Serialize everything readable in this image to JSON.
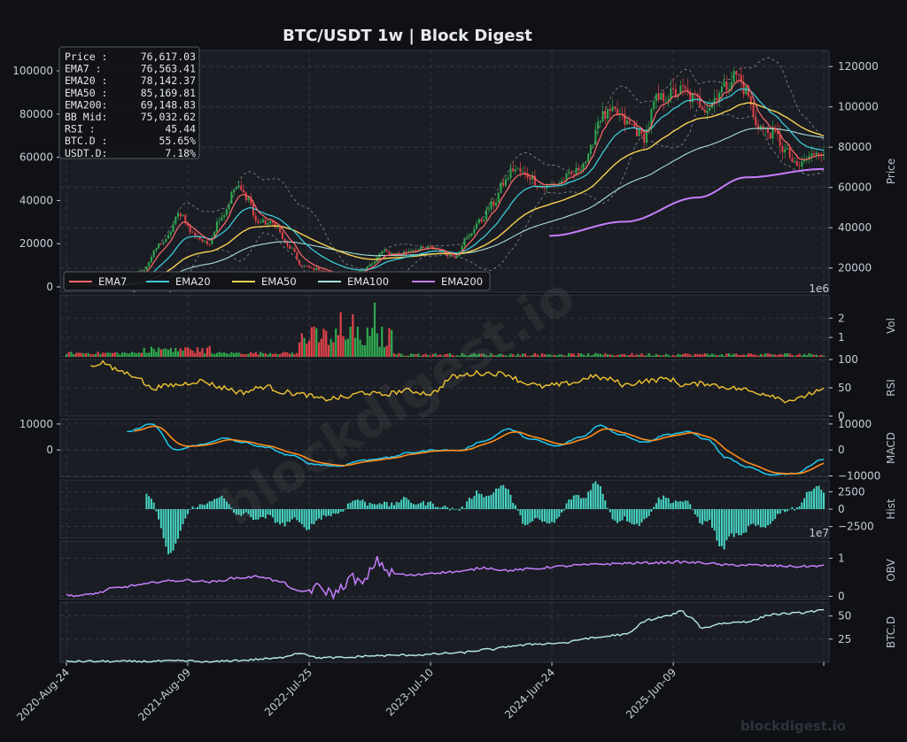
{
  "title": "BTC/USDT  1w  |  Block Digest",
  "watermark": "blockdigest.io",
  "footer_brand": "blockdigest.io",
  "colors": {
    "bg": "#0f1116",
    "panel": "#1a1d23",
    "up": "#2fa84f",
    "down": "#e0434a",
    "ema7": "#ff6b6b",
    "ema20": "#3fc9d9",
    "ema50": "#f7d154",
    "ema100": "#a8e0dc",
    "ema200": "#c77dff",
    "rsi": "#f0c431",
    "macd": "#1ec8f0",
    "signal": "#ff8c1a",
    "hist": "#48d6c6",
    "obv": "#c77dff",
    "btcd": "#b7ecec"
  },
  "info_box": [
    {
      "label": "Price :",
      "value": "76,617.03"
    },
    {
      "label": "EMA7  :",
      "value": "76,563.41"
    },
    {
      "label": "EMA20 :",
      "value": "78,142.37"
    },
    {
      "label": "EMA50 :",
      "value": "85,169.81"
    },
    {
      "label": "EMA200:",
      "value": "69,148.83"
    },
    {
      "label": "BB Mid:",
      "value": "75,032.62"
    },
    {
      "label": "RSI   :",
      "value": "45.44"
    },
    {
      "label": "BTC.D :",
      "value": "55.65%"
    },
    {
      "label": "USDT.D:",
      "value": "7.18%"
    }
  ],
  "legend": [
    "EMA7",
    "EMA20",
    "EMA50",
    "EMA100",
    "EMA200"
  ],
  "x_tick_labels": [
    "2020-Aug-24",
    "2021-Aug-09",
    "2022-Jul-25",
    "2023-Jul-10",
    "2024-Jun-24",
    "2025-Jun-09"
  ],
  "chart_data": {
    "type": "line",
    "x_range": [
      "2020-Aug-24",
      "2026-Jan"
    ],
    "panels": [
      {
        "id": "price",
        "ylabel": "Price",
        "left_ticks": [
          0,
          20000,
          40000,
          60000,
          80000,
          100000
        ],
        "right_ticks": [
          20000,
          40000,
          60000,
          80000,
          100000,
          120000
        ],
        "right_labels": [
          "20000",
          "40000",
          "60000",
          "80000",
          "100000",
          "120000"
        ],
        "left_labels": [
          "0",
          "20000",
          "40000",
          "60000",
          "80000",
          "100000"
        ],
        "right_ylim": [
          8000,
          128000
        ],
        "offset_label": "1e6",
        "series": [
          "Candles",
          "EMA7",
          "EMA20",
          "EMA50",
          "EMA100",
          "EMA200",
          "BB Upper",
          "BB Lower"
        ]
      },
      {
        "id": "vol",
        "ylabel": "Vol",
        "ticks": [
          "2",
          "1"
        ],
        "ylim": [
          0,
          3.2
        ]
      },
      {
        "id": "rsi",
        "ylabel": "RSI",
        "ticks": [
          "100",
          "50",
          "0"
        ],
        "ylim": [
          0,
          100
        ]
      },
      {
        "id": "macd",
        "ylabel": "MACD",
        "left_ticks": [
          "10000",
          "0"
        ],
        "right_ticks": [
          "10000",
          "0",
          "−10000"
        ],
        "ylim": [
          -10500,
          12000
        ]
      },
      {
        "id": "hist",
        "ylabel": "Hist",
        "ticks": [
          "2500",
          "0",
          "−2500"
        ],
        "ylim": [
          -4200,
          4200
        ],
        "offset_label": "1e7"
      },
      {
        "id": "obv",
        "ylabel": "OBV",
        "ticks": [
          "1",
          "0"
        ],
        "ylim": [
          -0.08,
          1.45
        ]
      },
      {
        "id": "btcd",
        "ylabel": "BTC.D",
        "ticks": [
          "50",
          "25"
        ],
        "ylim": [
          0,
          65
        ]
      }
    ],
    "keypoints": {
      "price": [
        [
          0,
          11500
        ],
        [
          20,
          11000
        ],
        [
          30,
          18000
        ],
        [
          40,
          33000
        ],
        [
          47,
          47000
        ],
        [
          52,
          37000
        ],
        [
          58,
          32000
        ],
        [
          64,
          46000
        ],
        [
          70,
          60000
        ],
        [
          75,
          55000
        ],
        [
          78,
          43000
        ],
        [
          85,
          42000
        ],
        [
          92,
          30000
        ],
        [
          97,
          21000
        ],
        [
          103,
          19500
        ],
        [
          110,
          17000
        ],
        [
          118,
          16500
        ],
        [
          126,
          22000
        ],
        [
          130,
          28000
        ],
        [
          136,
          27000
        ],
        [
          143,
          29000
        ],
        [
          150,
          30000
        ],
        [
          160,
          26000
        ],
        [
          165,
          35000
        ],
        [
          170,
          43000
        ],
        [
          176,
          52000
        ],
        [
          180,
          62000
        ],
        [
          184,
          69000
        ],
        [
          190,
          66000
        ],
        [
          196,
          60000
        ],
        [
          202,
          62000
        ],
        [
          208,
          66000
        ],
        [
          214,
          73000
        ],
        [
          220,
          95000
        ],
        [
          226,
          97000
        ],
        [
          232,
          91000
        ],
        [
          238,
          85000
        ],
        [
          243,
          103000
        ],
        [
          248,
          106000
        ],
        [
          254,
          108000
        ],
        [
          258,
          104000
        ],
        [
          264,
          100000
        ],
        [
          270,
          109000
        ],
        [
          276,
          116000
        ],
        [
          280,
          108000
        ],
        [
          284,
          92000
        ],
        [
          288,
          88000
        ],
        [
          292,
          86000
        ],
        [
          296,
          78000
        ],
        [
          301,
          70000
        ],
        [
          305,
          74000
        ],
        [
          310,
          79000
        ],
        [
          312,
          76617
        ]
      ],
      "ema200_start_week": 199,
      "ema200_end": 69148.83,
      "rsi": [
        [
          10,
          88
        ],
        [
          15,
          95
        ],
        [
          20,
          82
        ],
        [
          28,
          72
        ],
        [
          35,
          50
        ],
        [
          45,
          55
        ],
        [
          55,
          62
        ],
        [
          65,
          50
        ],
        [
          72,
          42
        ],
        [
          82,
          52
        ],
        [
          90,
          42
        ],
        [
          98,
          38
        ],
        [
          105,
          30
        ],
        [
          115,
          33
        ],
        [
          122,
          42
        ],
        [
          130,
          38
        ],
        [
          140,
          45
        ],
        [
          150,
          40
        ],
        [
          160,
          70
        ],
        [
          170,
          76
        ],
        [
          180,
          75
        ],
        [
          190,
          58
        ],
        [
          196,
          52
        ],
        [
          202,
          55
        ],
        [
          210,
          60
        ],
        [
          216,
          70
        ],
        [
          224,
          65
        ],
        [
          230,
          55
        ],
        [
          238,
          62
        ],
        [
          248,
          66
        ],
        [
          254,
          55
        ],
        [
          264,
          58
        ],
        [
          270,
          52
        ],
        [
          278,
          48
        ],
        [
          284,
          42
        ],
        [
          290,
          38
        ],
        [
          296,
          28
        ],
        [
          302,
          30
        ],
        [
          306,
          40
        ],
        [
          312,
          45.44
        ]
      ],
      "macd": [
        [
          25,
          7000
        ],
        [
          35,
          10000
        ],
        [
          45,
          0
        ],
        [
          55,
          2000
        ],
        [
          65,
          4500
        ],
        [
          72,
          3000
        ],
        [
          82,
          1000
        ],
        [
          92,
          -2000
        ],
        [
          102,
          -5500
        ],
        [
          112,
          -6200
        ],
        [
          122,
          -4000
        ],
        [
          132,
          -3000
        ],
        [
          142,
          -1000
        ],
        [
          152,
          0
        ],
        [
          162,
          -200
        ],
        [
          172,
          3500
        ],
        [
          182,
          8000
        ],
        [
          192,
          4000
        ],
        [
          202,
          1500
        ],
        [
          212,
          5000
        ],
        [
          220,
          9500
        ],
        [
          228,
          6000
        ],
        [
          238,
          3000
        ],
        [
          248,
          6000
        ],
        [
          256,
          7000
        ],
        [
          264,
          4000
        ],
        [
          272,
          -3000
        ],
        [
          280,
          -6500
        ],
        [
          290,
          -9500
        ],
        [
          300,
          -9000
        ],
        [
          312,
          -3500
        ]
      ],
      "obv": [
        [
          0,
          0.03
        ],
        [
          6,
          0.02
        ],
        [
          12,
          0.08
        ],
        [
          20,
          0.22
        ],
        [
          30,
          0.3
        ],
        [
          40,
          0.4
        ],
        [
          50,
          0.42
        ],
        [
          60,
          0.38
        ],
        [
          70,
          0.48
        ],
        [
          80,
          0.52
        ],
        [
          88,
          0.38
        ],
        [
          96,
          0.12
        ],
        [
          104,
          0.22
        ],
        [
          110,
          0.08
        ],
        [
          118,
          0.48
        ],
        [
          122,
          0.32
        ],
        [
          128,
          0.92
        ],
        [
          134,
          0.6
        ],
        [
          142,
          0.55
        ],
        [
          152,
          0.62
        ],
        [
          162,
          0.65
        ],
        [
          172,
          0.75
        ],
        [
          182,
          0.68
        ],
        [
          192,
          0.72
        ],
        [
          202,
          0.78
        ],
        [
          212,
          0.82
        ],
        [
          222,
          0.85
        ],
        [
          232,
          0.87
        ],
        [
          242,
          0.88
        ],
        [
          252,
          0.9
        ],
        [
          262,
          0.88
        ],
        [
          272,
          0.82
        ],
        [
          282,
          0.82
        ],
        [
          292,
          0.8
        ],
        [
          302,
          0.78
        ],
        [
          312,
          0.8
        ]
      ],
      "btcd": [
        [
          0,
          1
        ],
        [
          30,
          1
        ],
        [
          50,
          1.5
        ],
        [
          58,
          0.2
        ],
        [
          70,
          2
        ],
        [
          85,
          4
        ],
        [
          97,
          10
        ],
        [
          103,
          5
        ],
        [
          115,
          5
        ],
        [
          125,
          7
        ],
        [
          145,
          8
        ],
        [
          160,
          10
        ],
        [
          175,
          14
        ],
        [
          185,
          18
        ],
        [
          195,
          20
        ],
        [
          205,
          21
        ],
        [
          215,
          26
        ],
        [
          230,
          30
        ],
        [
          240,
          46
        ],
        [
          248,
          50
        ],
        [
          253,
          55
        ],
        [
          258,
          47
        ],
        [
          262,
          37
        ],
        [
          270,
          42
        ],
        [
          280,
          44
        ],
        [
          292,
          52
        ],
        [
          300,
          53
        ],
        [
          312,
          56
        ]
      ]
    }
  }
}
